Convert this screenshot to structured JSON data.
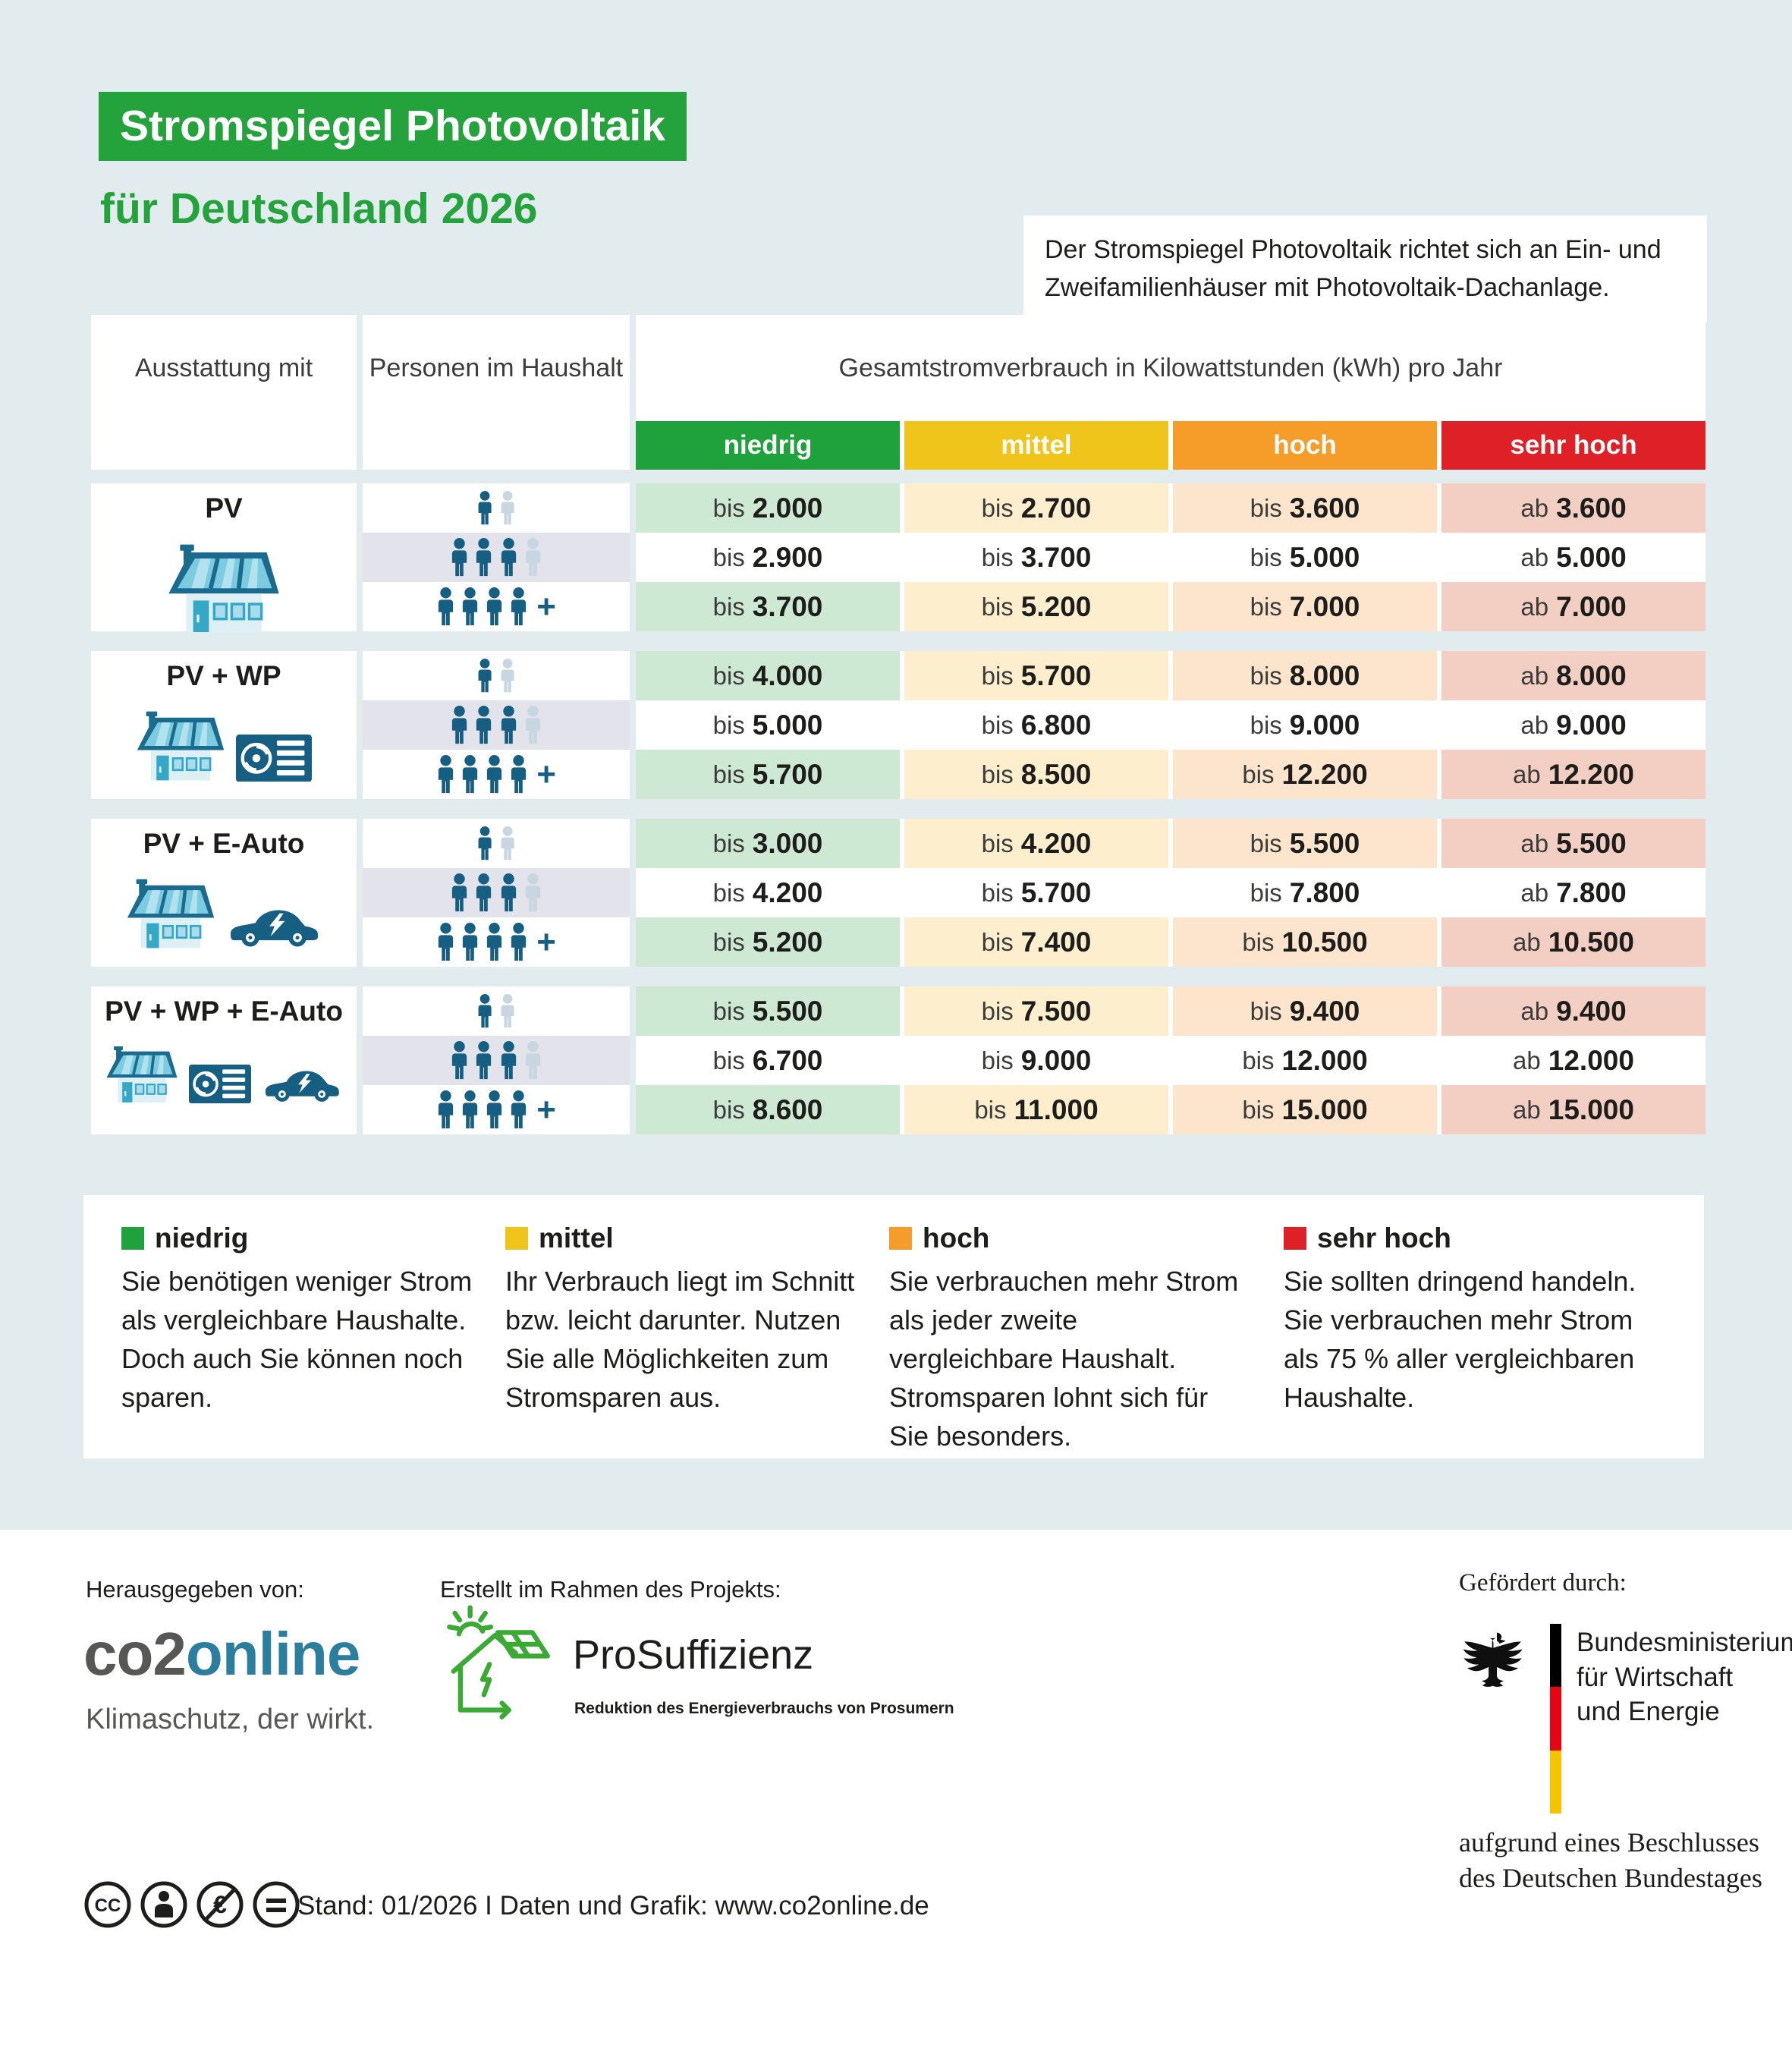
{
  "header": {
    "title": "Stromspiegel Photovoltaik",
    "subtitle": "für Deutschland 2026",
    "title_bg": "#24a23c",
    "intro": "Der Stromspiegel Photovoltaik richtet sich an Ein- und Zweifamilienhäuser mit Photovoltaik-Dachanlage."
  },
  "table": {
    "col1_header": "Ausstattung mit",
    "col2_header": "Personen im Haushalt",
    "value_header": "Gesamtstromverbrauch in Kilowattstunden (kWh) pro Jahr",
    "levels": [
      {
        "label": "niedrig",
        "color": "#1fa23c",
        "tint": "#cde8d3"
      },
      {
        "label": "mittel",
        "color": "#efc51b",
        "tint": "#fdeecd"
      },
      {
        "label": "hoch",
        "color": "#f69c28",
        "tint": "#fce5cc"
      },
      {
        "label": "sehr hoch",
        "color": "#dd2127",
        "tint": "#f3cfc3"
      }
    ],
    "person_rows": [
      {
        "dark": 1,
        "light": 1,
        "plus": false
      },
      {
        "dark": 3,
        "light": 1,
        "plus": false
      },
      {
        "dark": 4,
        "light": 0,
        "plus": true
      }
    ],
    "groups": [
      {
        "label": "PV",
        "icons": [
          "pv-house"
        ],
        "rows": [
          [
            {
              "p": "bis",
              "n": "2.000"
            },
            {
              "p": "bis",
              "n": "2.700"
            },
            {
              "p": "bis",
              "n": "3.600"
            },
            {
              "p": "ab",
              "n": "3.600"
            }
          ],
          [
            {
              "p": "bis",
              "n": "2.900"
            },
            {
              "p": "bis",
              "n": "3.700"
            },
            {
              "p": "bis",
              "n": "5.000"
            },
            {
              "p": "ab",
              "n": "5.000"
            }
          ],
          [
            {
              "p": "bis",
              "n": "3.700"
            },
            {
              "p": "bis",
              "n": "5.200"
            },
            {
              "p": "bis",
              "n": "7.000"
            },
            {
              "p": "ab",
              "n": "7.000"
            }
          ]
        ]
      },
      {
        "label": "PV + WP",
        "icons": [
          "pv-house",
          "heat-pump"
        ],
        "rows": [
          [
            {
              "p": "bis",
              "n": "4.000"
            },
            {
              "p": "bis",
              "n": "5.700"
            },
            {
              "p": "bis",
              "n": "8.000"
            },
            {
              "p": "ab",
              "n": "8.000"
            }
          ],
          [
            {
              "p": "bis",
              "n": "5.000"
            },
            {
              "p": "bis",
              "n": "6.800"
            },
            {
              "p": "bis",
              "n": "9.000"
            },
            {
              "p": "ab",
              "n": "9.000"
            }
          ],
          [
            {
              "p": "bis",
              "n": "5.700"
            },
            {
              "p": "bis",
              "n": "8.500"
            },
            {
              "p": "bis",
              "n": "12.200"
            },
            {
              "p": "ab",
              "n": "12.200"
            }
          ]
        ]
      },
      {
        "label": "PV + E-Auto",
        "icons": [
          "pv-house",
          "e-car"
        ],
        "rows": [
          [
            {
              "p": "bis",
              "n": "3.000"
            },
            {
              "p": "bis",
              "n": "4.200"
            },
            {
              "p": "bis",
              "n": "5.500"
            },
            {
              "p": "ab",
              "n": "5.500"
            }
          ],
          [
            {
              "p": "bis",
              "n": "4.200"
            },
            {
              "p": "bis",
              "n": "5.700"
            },
            {
              "p": "bis",
              "n": "7.800"
            },
            {
              "p": "ab",
              "n": "7.800"
            }
          ],
          [
            {
              "p": "bis",
              "n": "5.200"
            },
            {
              "p": "bis",
              "n": "7.400"
            },
            {
              "p": "bis",
              "n": "10.500"
            },
            {
              "p": "ab",
              "n": "10.500"
            }
          ]
        ]
      },
      {
        "label": "PV + WP + E-Auto",
        "icons": [
          "pv-house",
          "heat-pump",
          "e-car"
        ],
        "rows": [
          [
            {
              "p": "bis",
              "n": "5.500"
            },
            {
              "p": "bis",
              "n": "7.500"
            },
            {
              "p": "bis",
              "n": "9.400"
            },
            {
              "p": "ab",
              "n": "9.400"
            }
          ],
          [
            {
              "p": "bis",
              "n": "6.700"
            },
            {
              "p": "bis",
              "n": "9.000"
            },
            {
              "p": "bis",
              "n": "12.000"
            },
            {
              "p": "ab",
              "n": "12.000"
            }
          ],
          [
            {
              "p": "bis",
              "n": "8.600"
            },
            {
              "p": "bis",
              "n": "11.000"
            },
            {
              "p": "bis",
              "n": "15.000"
            },
            {
              "p": "ab",
              "n": "15.000"
            }
          ]
        ]
      }
    ]
  },
  "legend": [
    {
      "label": "niedrig",
      "color": "#1fa23c",
      "text": "Sie benötigen weniger Strom als vergleichbare Haushalte. Doch auch Sie können noch sparen."
    },
    {
      "label": "mittel",
      "color": "#efc51b",
      "text": "Ihr Verbrauch liegt im Schnitt bzw. leicht darunter. Nutzen Sie alle Möglichkeiten zum Stromsparen aus."
    },
    {
      "label": "hoch",
      "color": "#f69c28",
      "text": "Sie verbrauchen mehr Strom als jeder zweite vergleichbare Haushalt. Stromsparen lohnt sich für Sie besonders."
    },
    {
      "label": "sehr hoch",
      "color": "#dd2127",
      "text": "Sie sollten dringend handeln. Sie verbrauchen mehr Strom als 75 % aller vergleichbaren Haushalte."
    }
  ],
  "footer": {
    "publisher_label": "Herausgegeben von:",
    "co2online": {
      "part1": "co2",
      "part2": "online",
      "tagline": "Klimaschutz, der wirkt."
    },
    "project_label": "Erstellt im Rahmen des Projekts:",
    "prosuffizienz": {
      "name": "ProSuffizienz",
      "subtitle": "Reduktion des Energieverbrauchs von Prosumern"
    },
    "funded_label": "Gefördert durch:",
    "ministry": {
      "lines": [
        "Bundesministerium",
        "für Wirtschaft",
        "und Energie"
      ],
      "note1": "aufgrund eines Beschlusses",
      "note2": "des Deutschen Bundestages"
    },
    "stand_line": "Stand: 01/2026  I  Daten und Grafik: www.co2online.de"
  },
  "chart_data": {
    "type": "table",
    "title": "Stromspiegel Photovoltaik für Deutschland 2026",
    "unit": "Gesamtstromverbrauch in Kilowattstunden (kWh) pro Jahr",
    "columns": [
      "Ausstattung mit",
      "Personen im Haushalt (Icon-Anzahl)",
      "niedrig",
      "mittel",
      "hoch",
      "sehr hoch"
    ],
    "rows": [
      [
        "PV",
        "1 (+1 angedeutet)",
        "bis 2.000",
        "bis 2.700",
        "bis 3.600",
        "ab 3.600"
      ],
      [
        "PV",
        "3 (+1 angedeutet)",
        "bis 2.900",
        "bis 3.700",
        "bis 5.000",
        "ab 5.000"
      ],
      [
        "PV",
        "4 +",
        "bis 3.700",
        "bis 5.200",
        "bis 7.000",
        "ab 7.000"
      ],
      [
        "PV + WP",
        "1 (+1 angedeutet)",
        "bis 4.000",
        "bis 5.700",
        "bis 8.000",
        "ab 8.000"
      ],
      [
        "PV + WP",
        "3 (+1 angedeutet)",
        "bis 5.000",
        "bis 6.800",
        "bis 9.000",
        "ab 9.000"
      ],
      [
        "PV + WP",
        "4 +",
        "bis 5.700",
        "bis 8.500",
        "bis 12.200",
        "ab 12.200"
      ],
      [
        "PV + E-Auto",
        "1 (+1 angedeutet)",
        "bis 3.000",
        "bis 4.200",
        "bis 5.500",
        "ab 5.500"
      ],
      [
        "PV + E-Auto",
        "3 (+1 angedeutet)",
        "bis 4.200",
        "bis 5.700",
        "bis 7.800",
        "ab 7.800"
      ],
      [
        "PV + E-Auto",
        "4 +",
        "bis 5.200",
        "bis 7.400",
        "bis 10.500",
        "ab 10.500"
      ],
      [
        "PV + WP + E-Auto",
        "1 (+1 angedeutet)",
        "bis 5.500",
        "bis 7.500",
        "bis 9.400",
        "ab 9.400"
      ],
      [
        "PV + WP + E-Auto",
        "3 (+1 angedeutet)",
        "bis 6.700",
        "bis 9.000",
        "bis 12.000",
        "ab 12.000"
      ],
      [
        "PV + WP + E-Auto",
        "4 +",
        "bis 8.600",
        "bis 11.000",
        "bis 15.000",
        "ab 15.000"
      ]
    ]
  }
}
